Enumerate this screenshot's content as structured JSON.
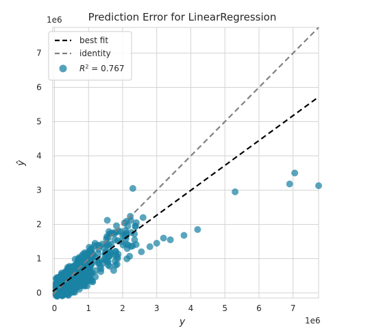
{
  "chart_data": {
    "type": "scatter",
    "title": "Prediction Error for LinearRegression",
    "xlabel": "y",
    "ylabel": "ŷ",
    "x_scale_label": "1e6",
    "y_scale_label": "1e6",
    "xlim": [
      -0.05,
      7.75
    ],
    "ylim": [
      -0.15,
      7.75
    ],
    "x_ticks": [
      0,
      1,
      2,
      3,
      4,
      5,
      6,
      7
    ],
    "y_ticks": [
      0,
      1,
      2,
      3,
      4,
      5,
      6,
      7
    ],
    "grid": true,
    "legend_position": "top-left",
    "legend": {
      "best_fit": "best fit",
      "identity": "identity",
      "r2_prefix": "R",
      "r2_suffix": " = 0.767"
    },
    "best_fit_line": {
      "x": [
        -0.05,
        7.75
      ],
      "y": [
        0.05,
        5.72
      ]
    },
    "identity_line": {
      "x": [
        -0.05,
        7.75
      ],
      "y": [
        -0.05,
        7.75
      ]
    },
    "colors": {
      "points": "#1a82a4",
      "best_fit": "#000000",
      "identity": "#808080",
      "grid": "#d3d3d3",
      "frame": "#d0d0d0"
    },
    "points_outliers": {
      "x": [
        2.3,
        5.3,
        6.9,
        7.05,
        7.75,
        4.2,
        3.8,
        3.4,
        3.2,
        3.0,
        2.8,
        2.6,
        2.55,
        2.4,
        2.35,
        2.1,
        1.95,
        1.85,
        1.7,
        1.6,
        1.55,
        1.5
      ],
      "y": [
        3.05,
        2.95,
        3.18,
        3.5,
        3.13,
        1.85,
        1.68,
        1.55,
        1.6,
        1.45,
        1.35,
        2.2,
        1.2,
        2.05,
        1.55,
        1.65,
        1.5,
        1.0,
        1.75,
        1.4,
        2.12,
        0.95
      ]
    },
    "points_cluster": {
      "count": 650,
      "x_range": [
        0.05,
        2.4
      ],
      "center_x": 0.55
    }
  }
}
